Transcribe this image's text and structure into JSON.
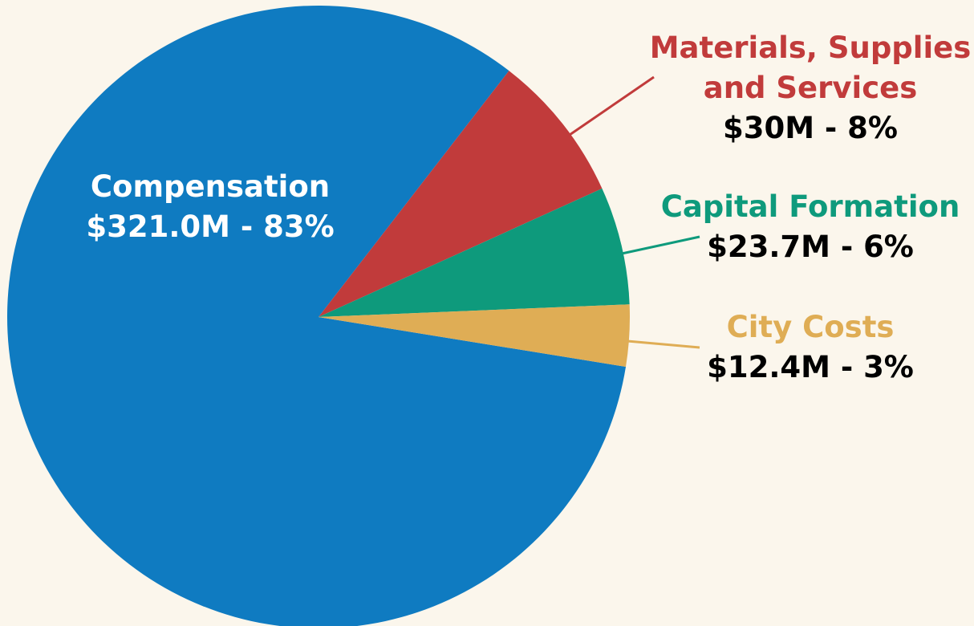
{
  "chart_data": {
    "type": "pie",
    "categories": [
      "Compensation",
      "Materials, Supplies and Services",
      "Capital Formation",
      "City Costs"
    ],
    "values": [
      321.0,
      30,
      23.7,
      12.4
    ],
    "value_labels": [
      "$321.0M - 83%",
      "$30M - 8%",
      "$23.7M - 6%",
      "$12.4M - 3%"
    ],
    "colors": [
      "#0f7bc1",
      "#c13b3b",
      "#0e9a7c",
      "#dfad55"
    ]
  }
}
